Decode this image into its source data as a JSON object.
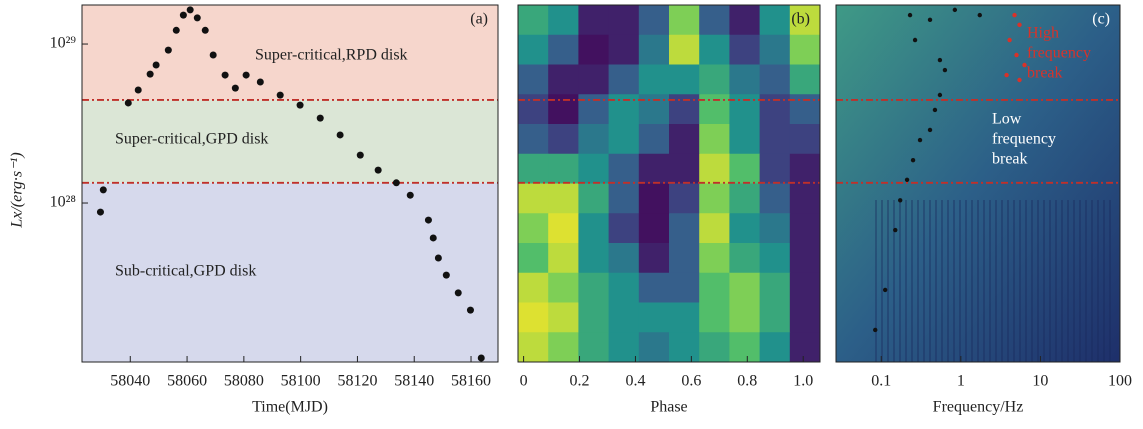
{
  "chart_data": [
    {
      "type": "scatter",
      "panel_label": "(a)",
      "xlabel": "Time(MJD)",
      "ylabel": "Lx/(erg·s⁻¹)",
      "log_y": true,
      "xlim": [
        58023,
        58169.5
      ],
      "ylim": [
        1e+27,
        1.76e+29
      ],
      "xticks": [
        58040,
        58060,
        58080,
        58100,
        58120,
        58140,
        58160
      ],
      "yticks": [
        {
          "value": 1e+28,
          "label": "10²⁸"
        },
        {
          "value": 1e+29,
          "label": "10²⁹"
        }
      ],
      "hlines": [
        4.45e+28,
        1.34e+28
      ],
      "hline_color": "#c0302a",
      "regions": [
        {
          "label": "Super-critical,RPD disk",
          "color": "#f6d6cc"
        },
        {
          "label": "Super-critical,GPD disk",
          "color": "#dbe6d6"
        },
        {
          "label": "Sub-critical,GPD disk",
          "color": "#d6d9ec"
        }
      ],
      "series": [
        {
          "color": "#111111",
          "x": [
            58029.5,
            58030.5,
            58039.3,
            58042.8,
            58047,
            58049.1,
            58053.4,
            58056.2,
            58058.7,
            58061.1,
            58063.6,
            58066.4,
            58069.2,
            58073.4,
            58077,
            58080.8,
            58085.8,
            58092.8,
            58099.8,
            58106.9,
            58113.9,
            58121,
            58127.3,
            58133.7,
            58138.6,
            58145,
            58146.7,
            58148.5,
            58151.3,
            58155.5,
            58159.8,
            58163.6
          ],
          "values": [
            8.77e+27,
            1.21e+28,
            4.26e+28,
            5.14e+28,
            6.47e+28,
            7.38e+28,
            9.16e+28,
            1.22e+29,
            1.52e+29,
            1.64e+29,
            1.46e+29,
            1.22e+29,
            8.53e+28,
            6.38e+28,
            5.28e+28,
            6.38e+28,
            5.77e+28,
            4.77e+28,
            4.13e+28,
            3.42e+28,
            2.68e+28,
            2e+28,
            1.61e+28,
            1.34e+28,
            1.12e+28,
            7.81e+27,
            6.03e+27,
            4.51e+27,
            3.52e+27,
            2.72e+27,
            2.12e+27,
            1.06e+27
          ]
        }
      ]
    },
    {
      "type": "heatmap",
      "panel_label": "(b)",
      "xlabel": "Phase",
      "log_y": true,
      "xlim": [
        -0.02,
        1.06
      ],
      "ylim": [
        1e+27,
        1.76e+29
      ],
      "xticks": [
        0,
        0.2,
        0.4,
        0.6,
        0.8,
        {
          "value": 1,
          "label": "1.0"
        }
      ],
      "hlines": [
        4.45e+28,
        1.34e+28
      ],
      "hline_color": "#c0302a",
      "z": [
        [
          0.6,
          0.5,
          0.1,
          0.1,
          0.3,
          0.8,
          0.3,
          0.1,
          0.5,
          0.9
        ],
        [
          0.5,
          0.3,
          0.05,
          0.1,
          0.4,
          0.9,
          0.5,
          0.2,
          0.4,
          0.8
        ],
        [
          0.3,
          0.1,
          0.1,
          0.3,
          0.5,
          0.5,
          0.6,
          0.4,
          0.3,
          0.6
        ],
        [
          0.2,
          0.05,
          0.3,
          0.5,
          0.4,
          0.2,
          0.7,
          0.5,
          0.2,
          0.3
        ],
        [
          0.3,
          0.2,
          0.4,
          0.5,
          0.3,
          0.1,
          0.8,
          0.5,
          0.2,
          0.2
        ],
        [
          0.6,
          0.6,
          0.5,
          0.3,
          0.1,
          0.1,
          0.9,
          0.7,
          0.2,
          0.1
        ],
        [
          0.9,
          0.9,
          0.6,
          0.3,
          0.05,
          0.2,
          0.8,
          0.6,
          0.3,
          0.1
        ],
        [
          0.8,
          0.95,
          0.5,
          0.2,
          0.05,
          0.3,
          0.9,
          0.5,
          0.4,
          0.1
        ],
        [
          0.7,
          0.9,
          0.5,
          0.4,
          0.1,
          0.3,
          0.8,
          0.6,
          0.5,
          0.1
        ],
        [
          0.9,
          0.8,
          0.6,
          0.5,
          0.3,
          0.3,
          0.7,
          0.8,
          0.6,
          0.1
        ],
        [
          0.95,
          0.9,
          0.6,
          0.5,
          0.5,
          0.5,
          0.7,
          0.8,
          0.6,
          0.1
        ],
        [
          0.9,
          0.8,
          0.6,
          0.5,
          0.4,
          0.5,
          0.6,
          0.7,
          0.5,
          0.1
        ]
      ]
    },
    {
      "type": "scatter",
      "panel_label": "(c)",
      "xlabel": "Frequency/Hz",
      "log_x": true,
      "log_y": true,
      "xlim": [
        0.027,
        100
      ],
      "ylim": [
        1e+27,
        1.76e+29
      ],
      "xticks": [
        0.1,
        1,
        10,
        100
      ],
      "hlines": [
        4.45e+28,
        1.34e+28
      ],
      "hline_color": "#c0302a",
      "annotations": [
        {
          "lines": [
            "High",
            "frequency",
            "break"
          ],
          "color": "#d8322a"
        },
        {
          "lines": [
            "Low",
            "frequency",
            "break"
          ],
          "color": "#ffffff"
        }
      ],
      "series": [
        {
          "color": "#111111",
          "x": [
            0.084,
            0.112,
            0.15,
            0.173,
            0.211,
            0.251,
            0.307,
            0.41,
            0.473,
            0.546,
            0.631,
            0.546,
            0.266,
            0.23,
            0.41,
            0.841,
            1.73
          ],
          "values": [
            1.59e+27,
            2.84e+27,
            6.76e+27,
            1.04e+28,
            1.4e+28,
            1.86e+28,
            2.49e+28,
            2.88e+28,
            3.85e+28,
            4.78e+28,
            6.86e+28,
            7.93e+28,
            1.06e+29,
            1.52e+29,
            1.42e+29,
            1.64e+29,
            1.52e+29
          ]
        },
        {
          "color": "#d8322a",
          "x": [
            4.73,
            5.46,
            4.1,
            5.01,
            6.31,
            3.76,
            5.46
          ],
          "values": [
            1.52e+29,
            1.32e+29,
            1.06e+29,
            8.53e+28,
            7.38e+28,
            6.38e+28,
            5.94e+28
          ]
        }
      ]
    }
  ]
}
